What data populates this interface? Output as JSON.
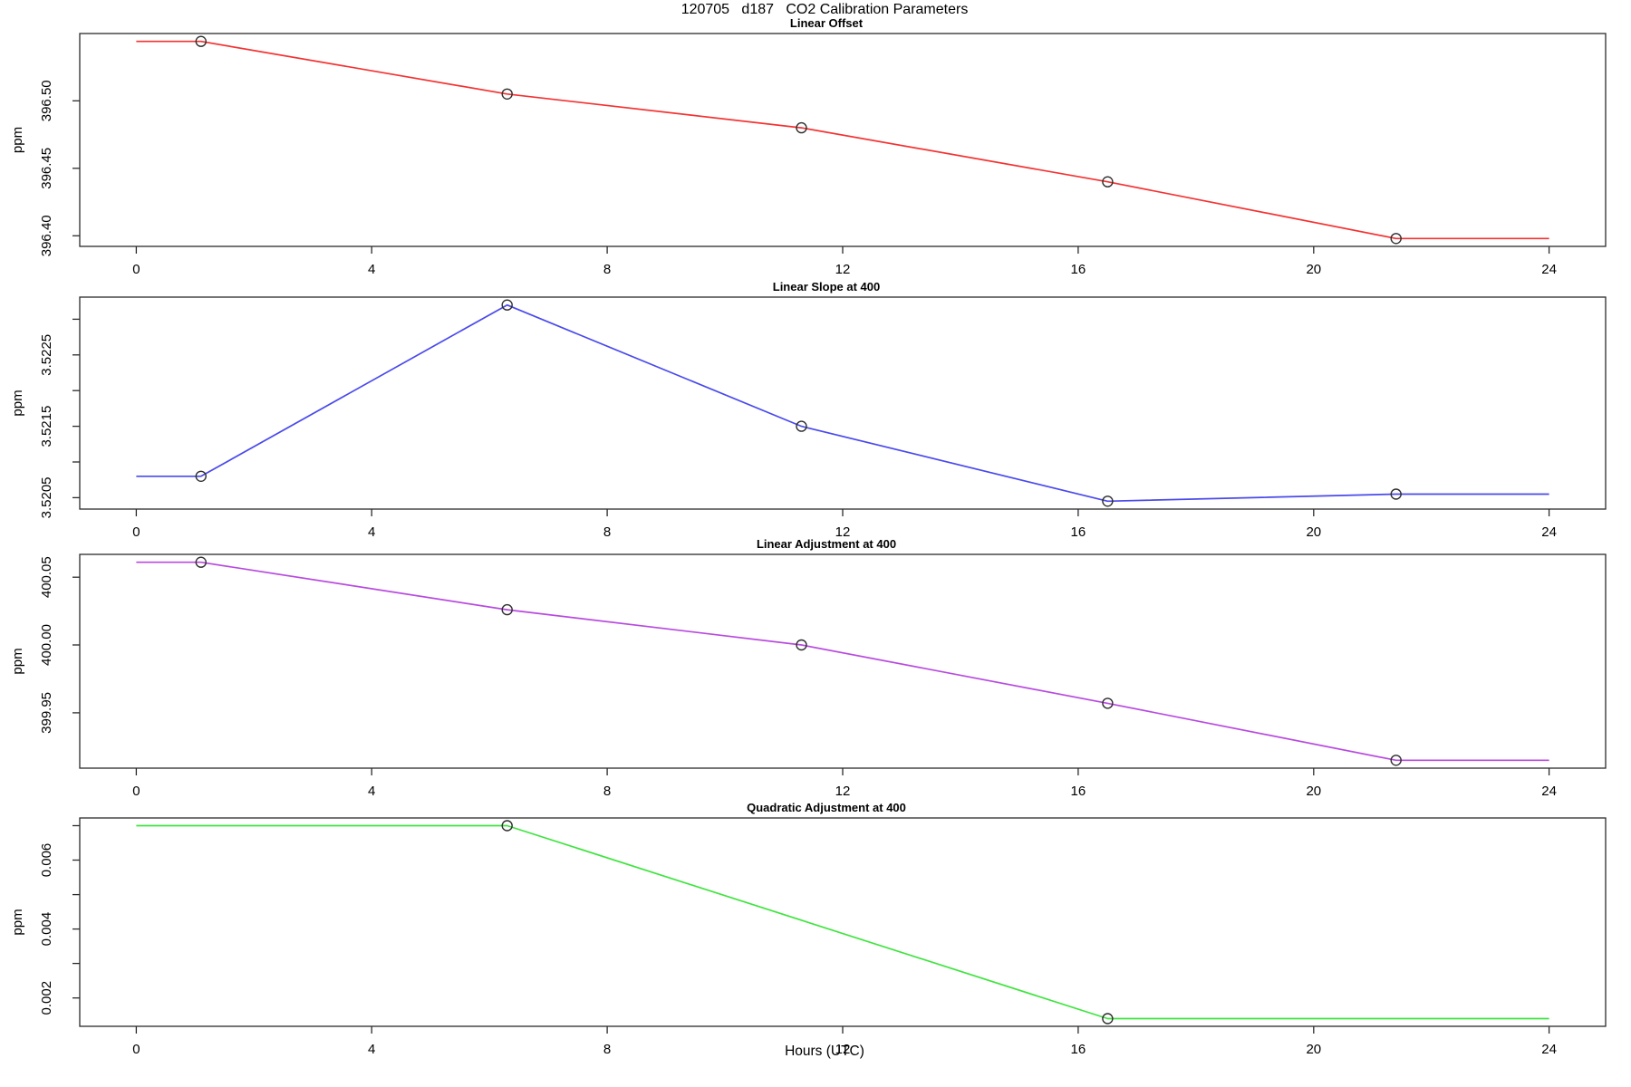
{
  "chart_data": {
    "type": "line",
    "title": "120705   d187   CO2 Calibration Parameters",
    "xlabel": "Hours (UTC)",
    "x_ticks": [
      0,
      4,
      8,
      12,
      16,
      20,
      24
    ],
    "xlim": [
      0,
      24
    ],
    "grid": "off",
    "axis_color": "#2b2b2b",
    "marker_color": "#2e2e2e",
    "panels": [
      {
        "title": "Linear Offset",
        "ylabel": "ppm",
        "color": "#f53131",
        "series_x": [
          0,
          1.1,
          6.3,
          11.3,
          16.5,
          21.4,
          24
        ],
        "series_y": [
          396.544,
          396.544,
          396.505,
          396.48,
          396.44,
          396.398,
          396.398
        ],
        "markers_x": [
          1.1,
          6.3,
          11.3,
          16.5,
          21.4
        ],
        "markers_y": [
          396.544,
          396.505,
          396.48,
          396.44,
          396.398
        ],
        "ylim": [
          396.398,
          396.544
        ],
        "y_ticks": [
          {
            "v": 396.4,
            "label": "396.40"
          },
          {
            "v": 396.45,
            "label": "396.45"
          },
          {
            "v": 396.5,
            "label": "396.50"
          }
        ]
      },
      {
        "title": "Linear Slope at 400",
        "ylabel": "ppm",
        "color": "#4a4aec",
        "series_x": [
          0,
          1.1,
          6.3,
          11.3,
          16.5,
          21.4,
          24
        ],
        "series_y": [
          3.5208,
          3.5208,
          3.5232,
          3.5215,
          3.52045,
          3.52055,
          3.52055
        ],
        "markers_x": [
          1.1,
          6.3,
          11.3,
          16.5,
          21.4
        ],
        "markers_y": [
          3.5208,
          3.5232,
          3.5215,
          3.52045,
          3.52055
        ],
        "ylim": [
          3.52045,
          3.5232
        ],
        "y_ticks": [
          {
            "v": 3.5205,
            "label": "3.5205"
          },
          {
            "v": 3.521,
            "label": ""
          },
          {
            "v": 3.5215,
            "label": "3.5215"
          },
          {
            "v": 3.522,
            "label": ""
          },
          {
            "v": 3.5225,
            "label": "3.5225"
          },
          {
            "v": 3.523,
            "label": ""
          }
        ]
      },
      {
        "title": "Linear Adjustment at 400",
        "ylabel": "ppm",
        "color": "#b84ae0",
        "series_x": [
          0,
          1.1,
          6.3,
          11.3,
          16.5,
          21.4,
          24
        ],
        "series_y": [
          400.061,
          400.061,
          400.026,
          400.0,
          399.957,
          399.915,
          399.915
        ],
        "markers_x": [
          1.1,
          6.3,
          11.3,
          16.5,
          21.4
        ],
        "markers_y": [
          400.061,
          400.026,
          400.0,
          399.957,
          399.915
        ],
        "ylim": [
          399.915,
          400.061
        ],
        "y_ticks": [
          {
            "v": 399.95,
            "label": "399.95"
          },
          {
            "v": 400.0,
            "label": "400.00"
          },
          {
            "v": 400.05,
            "label": "400.05"
          }
        ]
      },
      {
        "title": "Quadratic Adjustment at 400",
        "ylabel": "ppm",
        "color": "#3fe43f",
        "series_x": [
          0,
          6.3,
          16.5,
          24
        ],
        "series_y": [
          0.007,
          0.007,
          0.0014,
          0.0014
        ],
        "markers_x": [
          6.3,
          16.5
        ],
        "markers_y": [
          0.007,
          0.0014
        ],
        "ylim": [
          0.0014,
          0.007
        ],
        "y_ticks": [
          {
            "v": 0.002,
            "label": "0.002"
          },
          {
            "v": 0.003,
            "label": ""
          },
          {
            "v": 0.004,
            "label": "0.004"
          },
          {
            "v": 0.005,
            "label": ""
          },
          {
            "v": 0.006,
            "label": "0.006"
          },
          {
            "v": 0.007,
            "label": ""
          }
        ]
      }
    ]
  }
}
